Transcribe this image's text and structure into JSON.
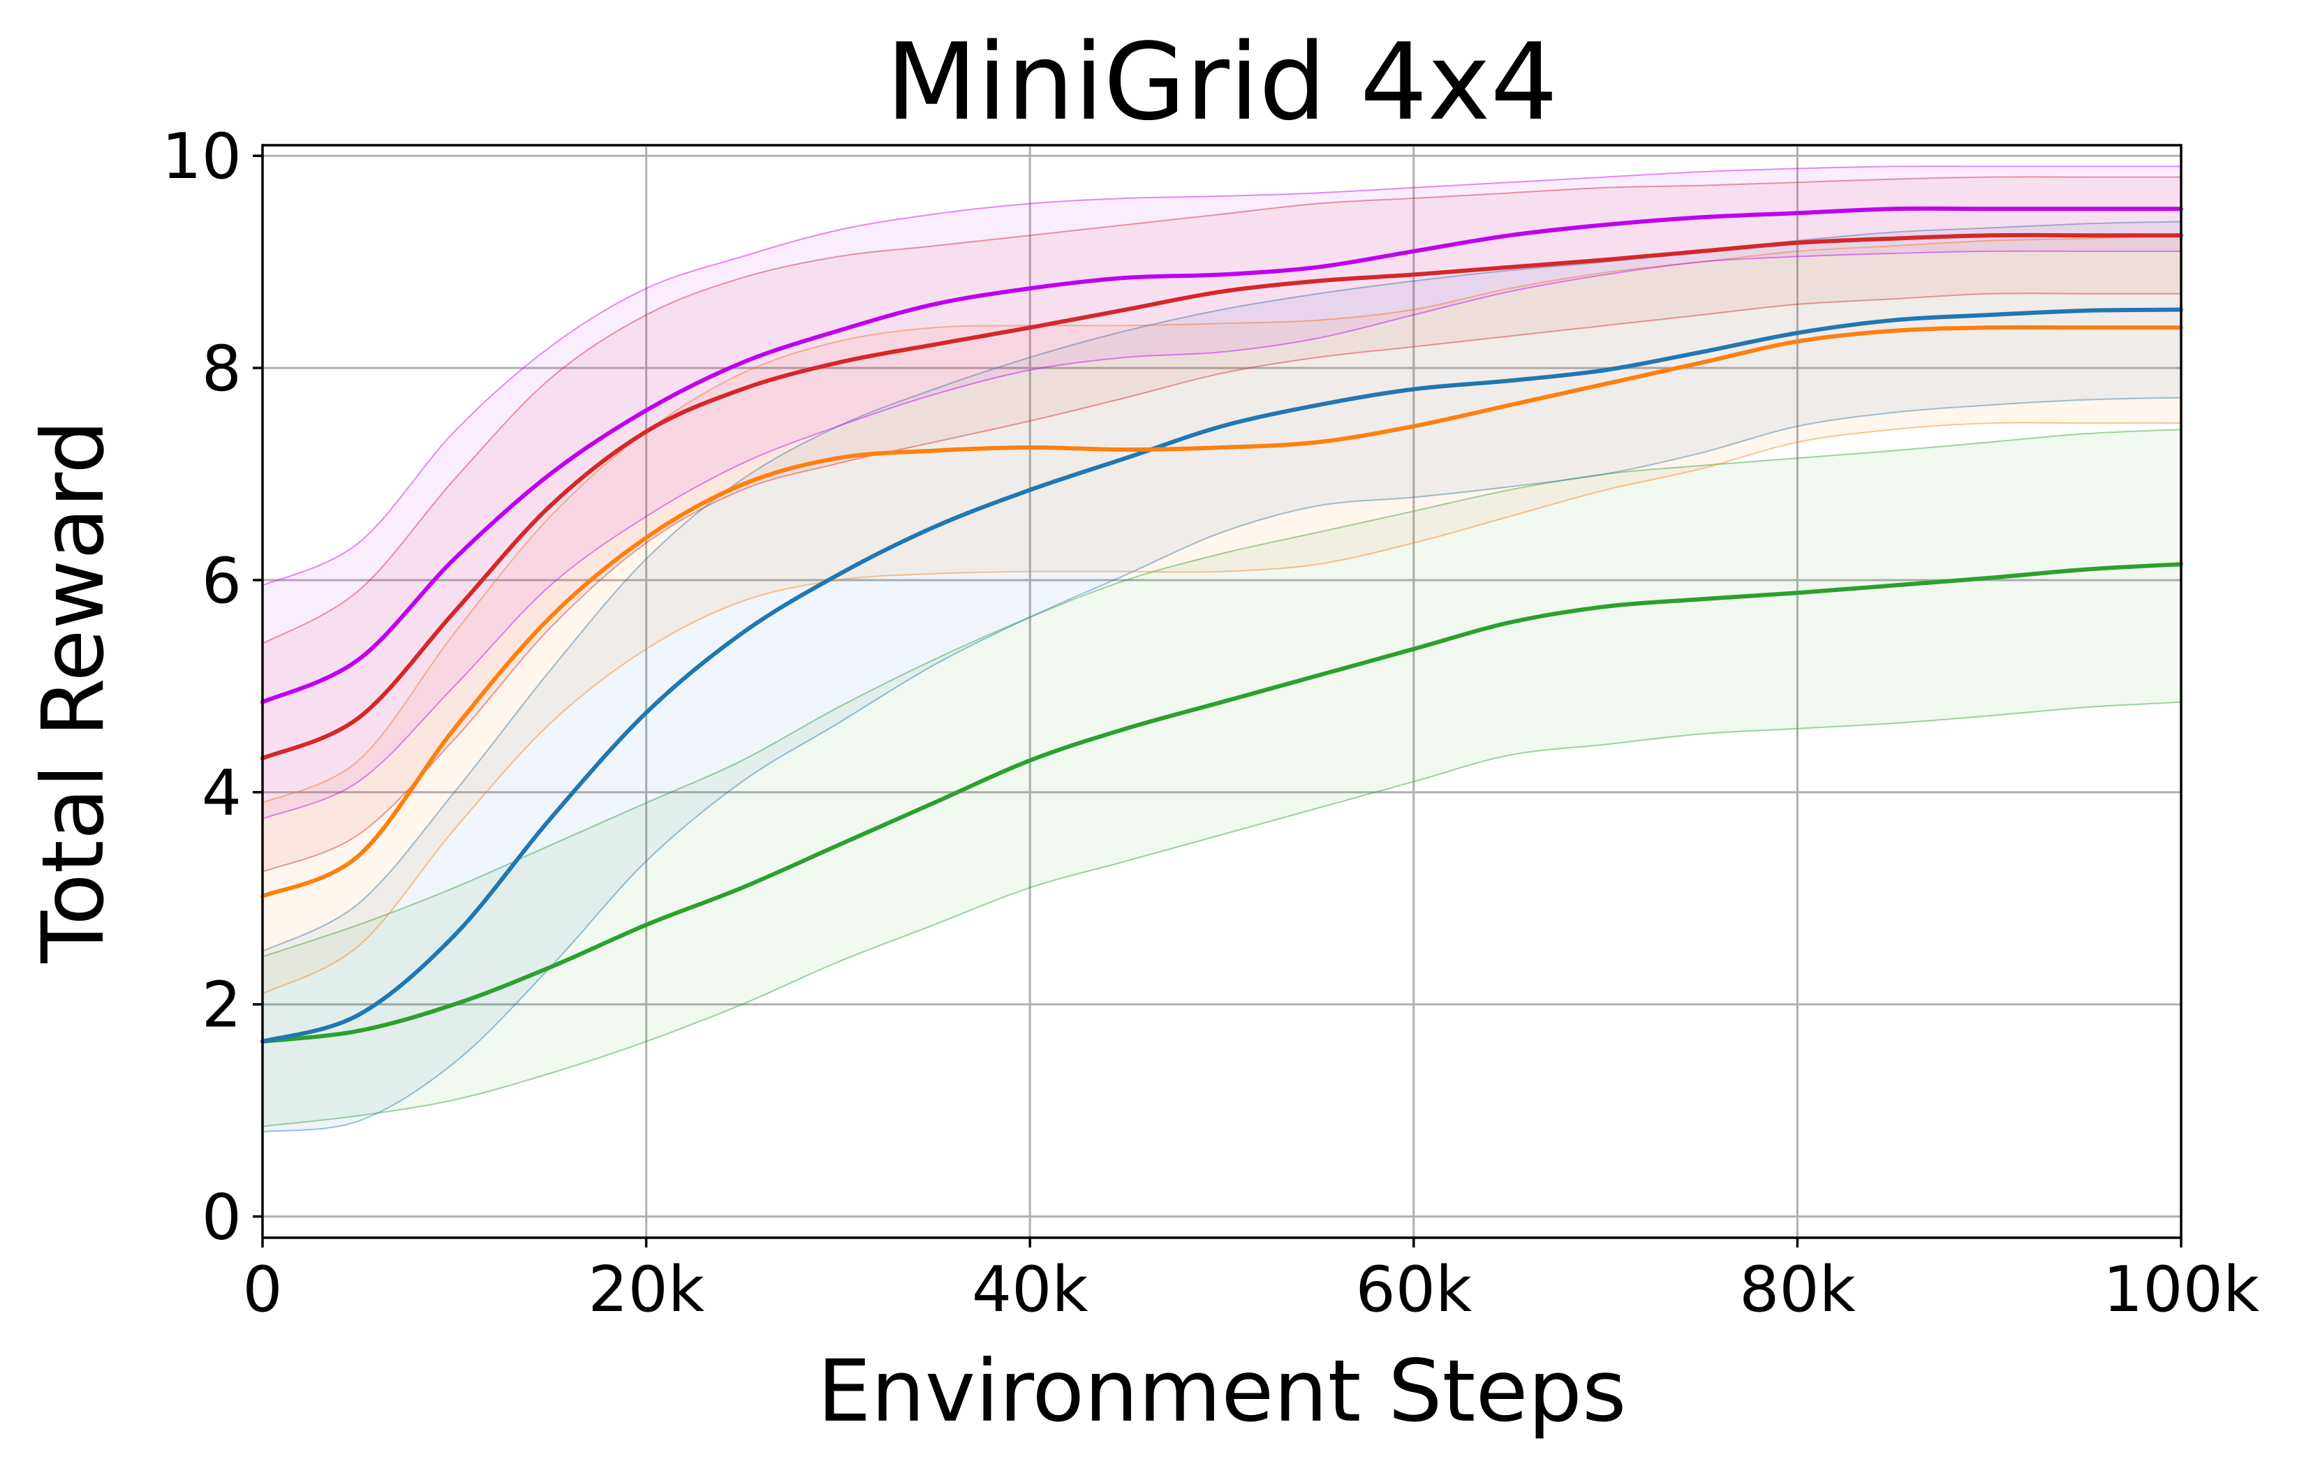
{
  "chart_data": {
    "type": "line",
    "title": "MiniGrid 4x4",
    "xlabel": "Environment Steps",
    "ylabel": "Total Reward",
    "xlim": [
      0,
      100000
    ],
    "ylim": [
      -0.2,
      10.1
    ],
    "grid": true,
    "legend": "none",
    "x_ticks": [
      {
        "value": 0,
        "label": "0"
      },
      {
        "value": 20000,
        "label": "20k"
      },
      {
        "value": 40000,
        "label": "40k"
      },
      {
        "value": 60000,
        "label": "60k"
      },
      {
        "value": 80000,
        "label": "80k"
      },
      {
        "value": 100000,
        "label": "100k"
      }
    ],
    "y_ticks": [
      {
        "value": 0,
        "label": "0"
      },
      {
        "value": 2,
        "label": "2"
      },
      {
        "value": 4,
        "label": "4"
      },
      {
        "value": 6,
        "label": "6"
      },
      {
        "value": 8,
        "label": "8"
      },
      {
        "value": 10,
        "label": "10"
      }
    ],
    "x": [
      0,
      5000,
      10000,
      15000,
      20000,
      25000,
      30000,
      35000,
      40000,
      45000,
      50000,
      55000,
      60000,
      65000,
      70000,
      75000,
      80000,
      85000,
      90000,
      95000,
      100000
    ],
    "series": [
      {
        "color": "#2ca02c",
        "mean": [
          1.65,
          1.75,
          2.0,
          2.35,
          2.75,
          3.1,
          3.5,
          3.9,
          4.3,
          4.6,
          4.85,
          5.1,
          5.35,
          5.6,
          5.75,
          5.82,
          5.88,
          5.95,
          6.02,
          6.1,
          6.15
        ],
        "upper": [
          2.45,
          2.75,
          3.1,
          3.5,
          3.9,
          4.3,
          4.8,
          5.25,
          5.65,
          6.0,
          6.25,
          6.45,
          6.65,
          6.85,
          7.0,
          7.08,
          7.15,
          7.22,
          7.3,
          7.38,
          7.42
        ],
        "lower": [
          0.85,
          0.95,
          1.1,
          1.35,
          1.65,
          2.0,
          2.4,
          2.75,
          3.1,
          3.35,
          3.6,
          3.85,
          4.1,
          4.35,
          4.45,
          4.55,
          4.6,
          4.65,
          4.72,
          4.8,
          4.85
        ]
      },
      {
        "color": "#1f77b4",
        "mean": [
          1.65,
          1.9,
          2.65,
          3.75,
          4.75,
          5.5,
          6.05,
          6.5,
          6.85,
          7.15,
          7.45,
          7.65,
          7.8,
          7.88,
          7.98,
          8.15,
          8.33,
          8.45,
          8.5,
          8.54,
          8.55
        ],
        "upper": [
          2.5,
          2.95,
          4.0,
          5.15,
          6.2,
          6.95,
          7.45,
          7.8,
          8.1,
          8.35,
          8.55,
          8.7,
          8.82,
          8.92,
          9.0,
          9.1,
          9.2,
          9.28,
          9.32,
          9.36,
          9.38
        ],
        "lower": [
          0.8,
          0.9,
          1.45,
          2.35,
          3.35,
          4.1,
          4.65,
          5.2,
          5.65,
          6.05,
          6.45,
          6.7,
          6.78,
          6.88,
          7.0,
          7.2,
          7.45,
          7.58,
          7.65,
          7.7,
          7.72
        ]
      },
      {
        "color": "#ff7f0e",
        "mean": [
          3.02,
          3.4,
          4.6,
          5.65,
          6.4,
          6.9,
          7.15,
          7.22,
          7.25,
          7.23,
          7.25,
          7.3,
          7.45,
          7.65,
          7.85,
          8.05,
          8.25,
          8.35,
          8.38,
          8.38,
          8.38
        ],
        "upper": [
          3.9,
          4.3,
          5.5,
          6.6,
          7.4,
          7.95,
          8.25,
          8.38,
          8.4,
          8.4,
          8.42,
          8.45,
          8.55,
          8.75,
          8.9,
          9.0,
          9.1,
          9.15,
          9.2,
          9.22,
          9.25
        ],
        "lower": [
          2.1,
          2.55,
          3.65,
          4.65,
          5.35,
          5.8,
          6.0,
          6.06,
          6.08,
          6.08,
          6.08,
          6.15,
          6.35,
          6.6,
          6.85,
          7.05,
          7.3,
          7.42,
          7.48,
          7.48,
          7.48
        ]
      },
      {
        "color": "#d62728",
        "mean": [
          4.32,
          4.7,
          5.7,
          6.7,
          7.4,
          7.8,
          8.05,
          8.22,
          8.38,
          8.55,
          8.72,
          8.82,
          8.88,
          8.95,
          9.02,
          9.1,
          9.18,
          9.22,
          9.25,
          9.25,
          9.25
        ],
        "upper": [
          5.4,
          5.9,
          6.95,
          7.9,
          8.5,
          8.85,
          9.05,
          9.15,
          9.25,
          9.35,
          9.45,
          9.55,
          9.6,
          9.65,
          9.7,
          9.72,
          9.75,
          9.78,
          9.8,
          9.8,
          9.8
        ],
        "lower": [
          3.25,
          3.6,
          4.5,
          5.55,
          6.35,
          6.85,
          7.1,
          7.3,
          7.5,
          7.72,
          7.95,
          8.1,
          8.2,
          8.3,
          8.4,
          8.5,
          8.6,
          8.65,
          8.7,
          8.7,
          8.7
        ]
      },
      {
        "color": "#bf00f0",
        "mean": [
          4.85,
          5.25,
          6.2,
          7.0,
          7.6,
          8.05,
          8.35,
          8.6,
          8.75,
          8.85,
          8.88,
          8.95,
          9.1,
          9.25,
          9.35,
          9.42,
          9.46,
          9.5,
          9.5,
          9.5,
          9.5
        ],
        "upper": [
          5.95,
          6.35,
          7.4,
          8.2,
          8.75,
          9.05,
          9.3,
          9.45,
          9.55,
          9.6,
          9.62,
          9.65,
          9.7,
          9.75,
          9.8,
          9.85,
          9.88,
          9.9,
          9.9,
          9.9,
          9.9
        ],
        "lower": [
          3.75,
          4.1,
          5.0,
          5.95,
          6.6,
          7.1,
          7.45,
          7.75,
          7.98,
          8.1,
          8.15,
          8.28,
          8.5,
          8.72,
          8.88,
          9.0,
          9.05,
          9.08,
          9.1,
          9.1,
          9.1
        ]
      }
    ]
  }
}
